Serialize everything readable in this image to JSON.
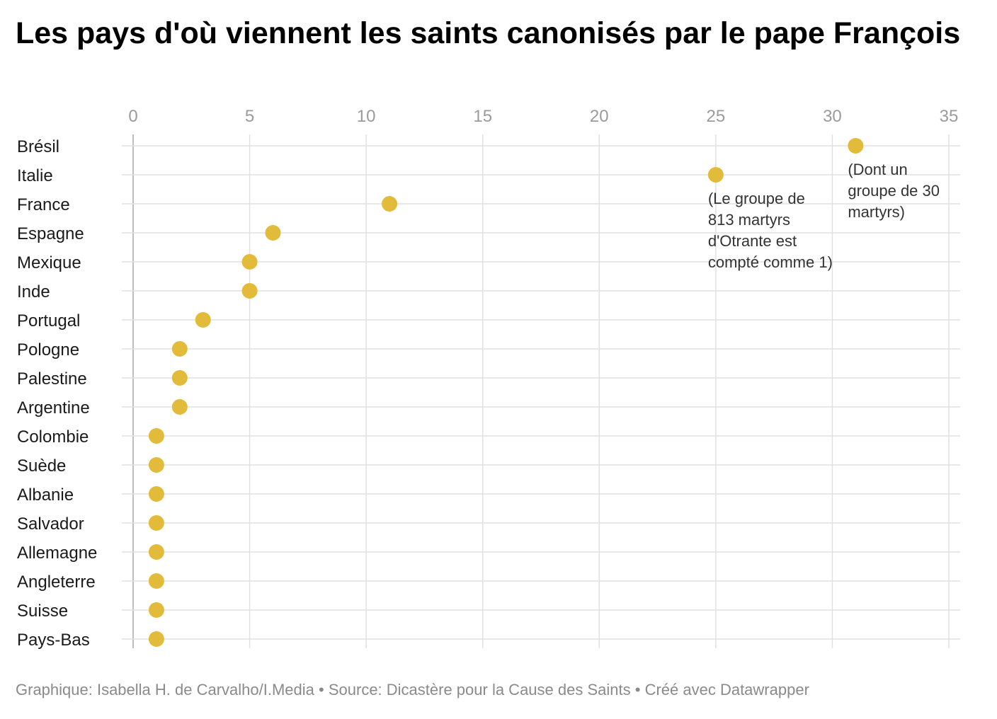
{
  "title": "Les pays d'où viennent les saints canonisés par le pape François",
  "footer": {
    "credit": "Graphique: Isabella H. de Carvalho/I.Media",
    "separator": " • ",
    "source": "Source: Dicastère pour la Cause des Saints",
    "tool": "Créé avec Datawrapper"
  },
  "colors": {
    "dot": "#E2BB3B",
    "grid": "#e1e1e1",
    "axis_zero": "#bdbdbd",
    "tick_label": "#9b9b9b",
    "category_label": "#1a1a1a",
    "annotation": "#333333",
    "footer": "#8a8a8a"
  },
  "chart_data": {
    "type": "scatter",
    "subtype": "dot-plot",
    "orientation": "horizontal",
    "x_axis_position": "top",
    "xlim": [
      0,
      35
    ],
    "x_ticks": [
      0,
      5,
      10,
      15,
      20,
      25,
      30,
      35
    ],
    "grid": true,
    "categories": [
      "Brésil",
      "Italie",
      "France",
      "Espagne",
      "Mexique",
      "Inde",
      "Portugal",
      "Pologne",
      "Palestine",
      "Argentine",
      "Colombie",
      "Suède",
      "Albanie",
      "Salvador",
      "Allemagne",
      "Angleterre",
      "Suisse",
      "Pays-Bas"
    ],
    "values": [
      31,
      25,
      11,
      6,
      5,
      5,
      3,
      2,
      2,
      2,
      1,
      1,
      1,
      1,
      1,
      1,
      1,
      1
    ],
    "annotations": [
      {
        "category": "Brésil",
        "lines": [
          "(Dont un",
          "groupe de 30",
          "martyrs)"
        ]
      },
      {
        "category": "Italie",
        "lines": [
          "(Le groupe de",
          "813 martyrs",
          "d'Otrante est",
          "compté comme 1)"
        ]
      }
    ]
  }
}
